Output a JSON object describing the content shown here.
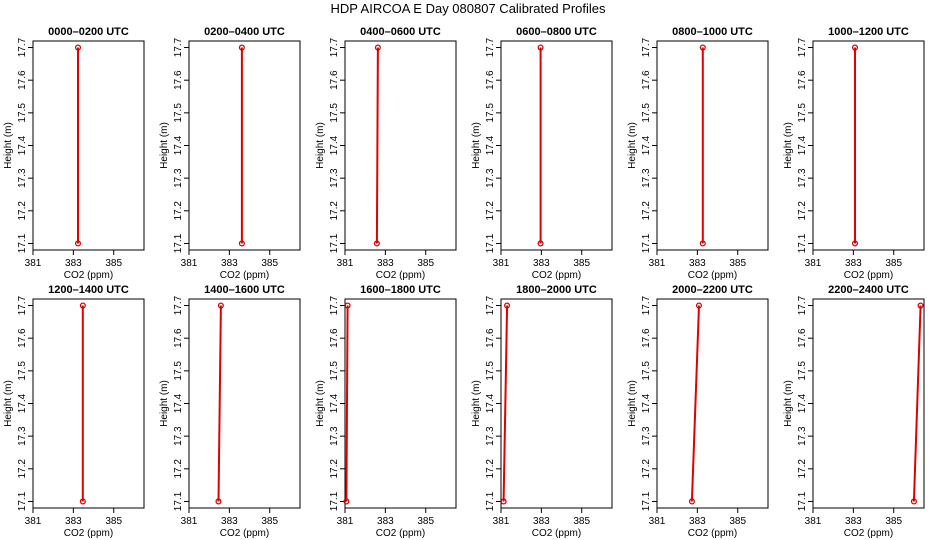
{
  "title": "HDP AIRCOA E  Day 080807  Calibrated Profiles",
  "colors": {
    "series": "#e00000",
    "axis": "#000000",
    "background": "#ffffff"
  },
  "chart_data": [
    {
      "type": "line",
      "title": "0000–0200 UTC",
      "xlabel": "CO2 (ppm)",
      "ylabel": "Height (m)",
      "xlim": [
        381,
        386.5
      ],
      "ylim": [
        17.08,
        17.72
      ],
      "xticks": [
        "381",
        "383",
        "385"
      ],
      "yticks": [
        "17.1",
        "17.2",
        "17.3",
        "17.4",
        "17.5",
        "17.6",
        "17.7"
      ],
      "series": [
        {
          "x": [
            383.23,
            383.23
          ],
          "y": [
            17.1,
            17.7
          ]
        }
      ]
    },
    {
      "type": "line",
      "title": "0200–0400 UTC",
      "xlabel": "CO2 (ppm)",
      "ylabel": "Height (m)",
      "xlim": [
        381,
        386.5
      ],
      "ylim": [
        17.08,
        17.72
      ],
      "xticks": [
        "381",
        "383",
        "385"
      ],
      "yticks": [
        "17.1",
        "17.2",
        "17.3",
        "17.4",
        "17.5",
        "17.6",
        "17.7"
      ],
      "series": [
        {
          "x": [
            383.62,
            383.62
          ],
          "y": [
            17.1,
            17.7
          ]
        }
      ]
    },
    {
      "type": "line",
      "title": "0400–0600 UTC",
      "xlabel": "CO2 (ppm)",
      "ylabel": "Height (m)",
      "xlim": [
        381,
        386.5
      ],
      "ylim": [
        17.08,
        17.72
      ],
      "xticks": [
        "381",
        "383",
        "385"
      ],
      "yticks": [
        "17.1",
        "17.2",
        "17.3",
        "17.4",
        "17.5",
        "17.6",
        "17.7"
      ],
      "series": [
        {
          "x": [
            382.58,
            382.63
          ],
          "y": [
            17.1,
            17.7
          ]
        }
      ]
    },
    {
      "type": "line",
      "title": "0600–0800 UTC",
      "xlabel": "CO2 (ppm)",
      "ylabel": "Height (m)",
      "xlim": [
        381,
        386.5
      ],
      "ylim": [
        17.08,
        17.72
      ],
      "xticks": [
        "381",
        "383",
        "385"
      ],
      "yticks": [
        "17.1",
        "17.2",
        "17.3",
        "17.4",
        "17.5",
        "17.6",
        "17.7"
      ],
      "series": [
        {
          "x": [
            382.96,
            382.96
          ],
          "y": [
            17.1,
            17.7
          ]
        }
      ]
    },
    {
      "type": "line",
      "title": "0800–1000 UTC",
      "xlabel": "CO2 (ppm)",
      "ylabel": "Height (m)",
      "xlim": [
        381,
        386.5
      ],
      "ylim": [
        17.08,
        17.72
      ],
      "xticks": [
        "381",
        "383",
        "385"
      ],
      "yticks": [
        "17.1",
        "17.2",
        "17.3",
        "17.4",
        "17.5",
        "17.6",
        "17.7"
      ],
      "series": [
        {
          "x": [
            383.27,
            383.27
          ],
          "y": [
            17.1,
            17.7
          ]
        }
      ]
    },
    {
      "type": "line",
      "title": "1000–1200 UTC",
      "xlabel": "CO2 (ppm)",
      "ylabel": "Height (m)",
      "xlim": [
        381,
        386.5
      ],
      "ylim": [
        17.08,
        17.72
      ],
      "xticks": [
        "381",
        "383",
        "385"
      ],
      "yticks": [
        "17.1",
        "17.2",
        "17.3",
        "17.4",
        "17.5",
        "17.6",
        "17.7"
      ],
      "series": [
        {
          "x": [
            383.08,
            383.08
          ],
          "y": [
            17.1,
            17.7
          ]
        }
      ]
    },
    {
      "type": "line",
      "title": "1200–1400 UTC",
      "xlabel": "CO2 (ppm)",
      "ylabel": "Height (m)",
      "xlim": [
        381,
        386.5
      ],
      "ylim": [
        17.08,
        17.72
      ],
      "xticks": [
        "381",
        "383",
        "385"
      ],
      "yticks": [
        "17.1",
        "17.2",
        "17.3",
        "17.4",
        "17.5",
        "17.6",
        "17.7"
      ],
      "series": [
        {
          "x": [
            383.47,
            383.47
          ],
          "y": [
            17.1,
            17.7
          ]
        }
      ]
    },
    {
      "type": "line",
      "title": "1400–1600 UTC",
      "xlabel": "CO2 (ppm)",
      "ylabel": "Height (m)",
      "xlim": [
        381,
        386.5
      ],
      "ylim": [
        17.08,
        17.72
      ],
      "xticks": [
        "381",
        "383",
        "385"
      ],
      "yticks": [
        "17.1",
        "17.2",
        "17.3",
        "17.4",
        "17.5",
        "17.6",
        "17.7"
      ],
      "series": [
        {
          "x": [
            382.46,
            382.58
          ],
          "y": [
            17.1,
            17.7
          ]
        }
      ]
    },
    {
      "type": "line",
      "title": "1600–1800 UTC",
      "xlabel": "CO2 (ppm)",
      "ylabel": "Height (m)",
      "xlim": [
        381,
        386.5
      ],
      "ylim": [
        17.08,
        17.72
      ],
      "xticks": [
        "381",
        "383",
        "385"
      ],
      "yticks": [
        "17.1",
        "17.2",
        "17.3",
        "17.4",
        "17.5",
        "17.6",
        "17.7"
      ],
      "series": [
        {
          "x": [
            381.07,
            381.13
          ],
          "y": [
            17.1,
            17.7
          ]
        }
      ]
    },
    {
      "type": "line",
      "title": "1800–2000 UTC",
      "xlabel": "CO2 (ppm)",
      "ylabel": "Height (m)",
      "xlim": [
        381,
        386.5
      ],
      "ylim": [
        17.08,
        17.72
      ],
      "xticks": [
        "381",
        "383",
        "385"
      ],
      "yticks": [
        "17.1",
        "17.2",
        "17.3",
        "17.4",
        "17.5",
        "17.6",
        "17.7"
      ],
      "series": [
        {
          "x": [
            381.13,
            381.3
          ],
          "y": [
            17.1,
            17.7
          ]
        }
      ]
    },
    {
      "type": "line",
      "title": "2000–2200 UTC",
      "xlabel": "CO2 (ppm)",
      "ylabel": "Height (m)",
      "xlim": [
        381,
        386.5
      ],
      "ylim": [
        17.08,
        17.72
      ],
      "xticks": [
        "381",
        "383",
        "385"
      ],
      "yticks": [
        "17.1",
        "17.2",
        "17.3",
        "17.4",
        "17.5",
        "17.6",
        "17.7"
      ],
      "series": [
        {
          "x": [
            382.73,
            383.08
          ],
          "y": [
            17.1,
            17.7
          ]
        }
      ]
    },
    {
      "type": "line",
      "title": "2200–2400 UTC",
      "xlabel": "CO2 (ppm)",
      "ylabel": "Height (m)",
      "xlim": [
        381,
        386.5
      ],
      "ylim": [
        17.08,
        17.72
      ],
      "xticks": [
        "381",
        "383",
        "385"
      ],
      "yticks": [
        "17.1",
        "17.2",
        "17.3",
        "17.4",
        "17.5",
        "17.6",
        "17.7"
      ],
      "series": [
        {
          "x": [
            386.0,
            386.33
          ],
          "y": [
            17.1,
            17.7
          ]
        }
      ]
    }
  ]
}
